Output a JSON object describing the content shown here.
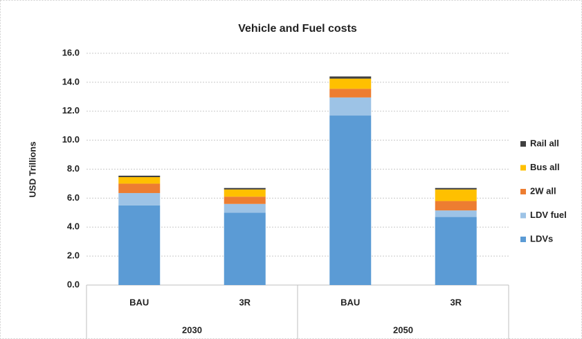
{
  "chart_data": {
    "type": "stacked_bar",
    "title": "Vehicle and Fuel costs",
    "y_label": "USD Trillions",
    "categories": [
      "BAU",
      "3R",
      "BAU",
      "3R"
    ],
    "groups": [
      {
        "label": "2030",
        "size": 2
      },
      {
        "label": "2050",
        "size": 2
      }
    ],
    "series": [
      {
        "name": "LDVs",
        "color": "#5b9bd5",
        "values": [
          5.5,
          5.0,
          11.7,
          4.7
        ]
      },
      {
        "name": "LDV fuel",
        "color": "#9dc3e6",
        "values": [
          0.85,
          0.6,
          1.25,
          0.45
        ]
      },
      {
        "name": "2W all",
        "color": "#ed7d31",
        "values": [
          0.65,
          0.5,
          0.6,
          0.65
        ]
      },
      {
        "name": "Bus all",
        "color": "#ffc000",
        "values": [
          0.45,
          0.5,
          0.7,
          0.8
        ]
      },
      {
        "name": "Rail all",
        "color": "#404040",
        "values": [
          0.1,
          0.1,
          0.15,
          0.1
        ]
      }
    ],
    "ylim": [
      0,
      16
    ],
    "yticks": [
      {
        "value": 0,
        "label": "0.0"
      },
      {
        "value": 2,
        "label": "2.0"
      },
      {
        "value": 4,
        "label": "4.0"
      },
      {
        "value": 6,
        "label": "6.0"
      },
      {
        "value": 8,
        "label": "8.0"
      },
      {
        "value": 10,
        "label": "10.0"
      },
      {
        "value": 12,
        "label": "12.0"
      },
      {
        "value": 14,
        "label": "14.0"
      },
      {
        "value": 16,
        "label": "16.0"
      }
    ],
    "grid": true,
    "legend": "right"
  }
}
